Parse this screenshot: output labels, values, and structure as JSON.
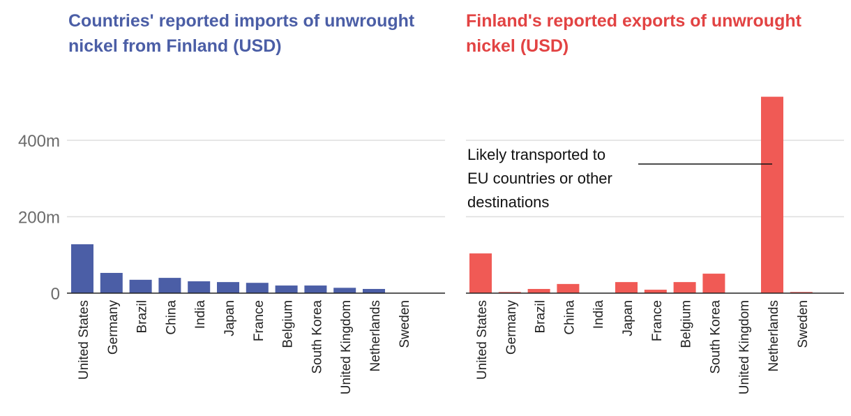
{
  "colors": {
    "left_accent": "#4b5ea6",
    "right_accent": "#e24343",
    "left_bar": "#4b5ea6",
    "right_bar": "#f05a55",
    "grid": "#dddddd",
    "axis": "#222222",
    "tick_text": "#6b6b6b"
  },
  "chart_data": [
    {
      "type": "bar",
      "title": "Countries' reported imports of unwrought nickel from Finland (USD)",
      "categories": [
        "United States",
        "Germany",
        "Brazil",
        "China",
        "India",
        "Japan",
        "France",
        "Belgium",
        "South Korea",
        "United Kingdom",
        "Netherlands",
        "Sweden"
      ],
      "values": [
        128,
        53,
        35,
        40,
        31,
        29,
        27,
        20,
        20,
        14,
        11,
        0
      ],
      "unit": "millions USD",
      "ylim": [
        0,
        520
      ],
      "yticks": [
        0,
        200,
        400
      ],
      "ytick_labels": [
        "0",
        "200m",
        "400m"
      ],
      "grid": true
    },
    {
      "type": "bar",
      "title": "Finland's reported exports of unwrought nickel (USD)",
      "categories": [
        "United States",
        "Germany",
        "Brazil",
        "China",
        "India",
        "Japan",
        "France",
        "Belgium",
        "South Korea",
        "United Kingdom",
        "Netherlands",
        "Sweden"
      ],
      "values": [
        104,
        3,
        11,
        24,
        0,
        29,
        9,
        29,
        51,
        0,
        514,
        3
      ],
      "unit": "millions USD",
      "ylim": [
        0,
        520
      ],
      "yticks": [
        0,
        200,
        400
      ],
      "grid": true,
      "annotation": {
        "lines": [
          "Likely transported to",
          "EU countries or other",
          "destinations"
        ],
        "target_category": "Netherlands"
      }
    }
  ]
}
